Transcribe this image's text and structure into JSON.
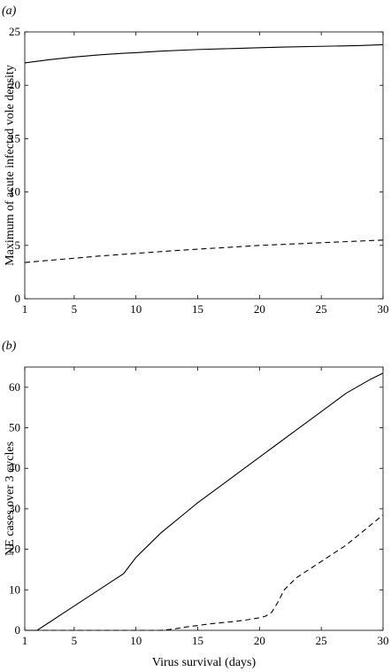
{
  "chart_data": [
    {
      "type": "line",
      "panel_label": "(a)",
      "xlabel": "",
      "ylabel": "Maximum of acute infected vole density",
      "xlim": [
        1,
        30
      ],
      "ylim": [
        0,
        25
      ],
      "xticks": [
        1,
        5,
        10,
        15,
        20,
        25,
        30
      ],
      "yticks": [
        0,
        5,
        10,
        15,
        20,
        25
      ],
      "series": [
        {
          "style": "solid",
          "x": [
            1,
            3,
            5,
            7,
            9,
            10,
            12,
            15,
            18,
            20,
            22,
            25,
            28,
            30
          ],
          "y": [
            22.1,
            22.4,
            22.65,
            22.85,
            23.0,
            23.05,
            23.2,
            23.35,
            23.45,
            23.52,
            23.58,
            23.65,
            23.72,
            23.8
          ]
        },
        {
          "style": "dashed",
          "x": [
            1,
            3,
            5,
            7,
            10,
            13,
            15,
            18,
            20,
            23,
            25,
            28,
            30
          ],
          "y": [
            3.4,
            3.6,
            3.8,
            4.0,
            4.25,
            4.5,
            4.65,
            4.85,
            5.0,
            5.15,
            5.25,
            5.4,
            5.5
          ]
        }
      ]
    },
    {
      "type": "line",
      "panel_label": "(b)",
      "xlabel": "Virus survival (days)",
      "ylabel": "NE cases over 3 cycles",
      "xlim": [
        1,
        30
      ],
      "ylim": [
        0,
        65
      ],
      "xticks": [
        1,
        5,
        10,
        15,
        20,
        25,
        30
      ],
      "yticks": [
        0,
        10,
        20,
        30,
        40,
        50,
        60
      ],
      "series": [
        {
          "style": "solid",
          "x": [
            1,
            2,
            3,
            4,
            5,
            6,
            7,
            8,
            9,
            9.5,
            10,
            11,
            12,
            13,
            14,
            15,
            17,
            19,
            21,
            23,
            25,
            27,
            29,
            30
          ],
          "y": [
            0,
            0,
            2,
            4,
            6,
            8,
            10,
            12,
            14,
            16,
            18,
            21,
            24,
            26.5,
            29,
            31.5,
            36,
            40.5,
            45,
            49.5,
            54,
            58.5,
            62,
            63.5
          ]
        },
        {
          "style": "dashed",
          "x": [
            1,
            5,
            10,
            12,
            13,
            14,
            15,
            16,
            17,
            18,
            19,
            20,
            20.5,
            21,
            21.5,
            22,
            23,
            24,
            25,
            26,
            27,
            28,
            29,
            30
          ],
          "y": [
            0,
            0,
            0,
            0,
            0.3,
            0.8,
            1.2,
            1.6,
            1.9,
            2.2,
            2.6,
            3.1,
            3.5,
            4.5,
            7,
            10,
            13,
            15,
            17,
            19,
            21,
            23.5,
            26,
            28.5
          ]
        }
      ]
    }
  ]
}
